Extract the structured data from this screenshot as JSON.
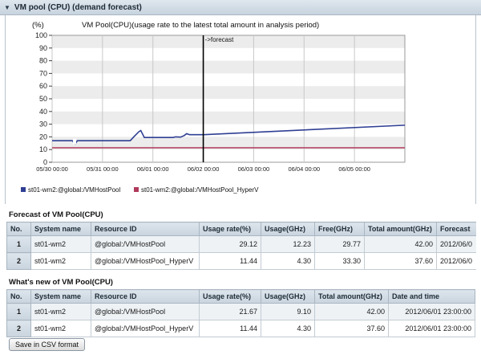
{
  "panel": {
    "title": "VM pool (CPU) (demand forecast)"
  },
  "chart_data": {
    "type": "line",
    "title": "VM Pool(CPU)(usage rate to the latest total amount in analysis period)",
    "ylabel": "(%)",
    "xlabel": "",
    "ylim": [
      0,
      100
    ],
    "yticks": [
      0,
      10,
      20,
      30,
      40,
      50,
      60,
      70,
      80,
      90,
      100
    ],
    "xticks": [
      "05/30 00:00",
      "05/31 00:00",
      "06/01 00:00",
      "06/02 00:00",
      "06/03 00:00",
      "06/04 00:00",
      "06/05 00:00"
    ],
    "xlim_days": [
      0,
      7
    ],
    "forecast_label": "->forecast",
    "forecast_at_day": 3.0,
    "grid": true,
    "legend_position": "bottom-left",
    "series": [
      {
        "name": "st01-wm2:@global:/VMHostPool",
        "color": "#2f3f93",
        "points": [
          [
            0.0,
            17
          ],
          [
            0.4,
            17
          ],
          [
            0.46,
            14.5
          ],
          [
            0.5,
            17
          ],
          [
            1.55,
            17
          ],
          [
            1.62,
            20
          ],
          [
            1.72,
            24
          ],
          [
            1.76,
            25
          ],
          [
            1.83,
            19.5
          ],
          [
            2.4,
            19.5
          ],
          [
            2.45,
            20
          ],
          [
            2.55,
            19.8
          ],
          [
            2.62,
            21
          ],
          [
            2.67,
            22.5
          ],
          [
            2.73,
            21.7
          ],
          [
            3.0,
            21.7
          ],
          [
            7.0,
            29.2
          ]
        ]
      },
      {
        "name": "st01-wm2:@global:/VMHostPool_HyperV",
        "color": "#b03a5c",
        "points": [
          [
            0.0,
            11.4
          ],
          [
            7.0,
            11.4
          ]
        ]
      }
    ]
  },
  "forecast_table": {
    "title": "Forecast of VM Pool(CPU)",
    "columns": [
      "No.",
      "System name",
      "Resource ID",
      "Usage rate(%)",
      "Usage(GHz)",
      "Free(GHz)",
      "Total amount(GHz)",
      "Forecast"
    ],
    "rows": [
      [
        "1",
        "st01-wm2",
        "@global:/VMHostPool",
        "29.12",
        "12.23",
        "29.77",
        "42.00",
        "2012/06/0"
      ],
      [
        "2",
        "st01-wm2",
        "@global:/VMHostPool_HyperV",
        "11.44",
        "4.30",
        "33.30",
        "37.60",
        "2012/06/0"
      ]
    ]
  },
  "whats_new_table": {
    "title": "What's new of VM Pool(CPU)",
    "columns": [
      "No.",
      "System name",
      "Resource ID",
      "Usage rate(%)",
      "Usage(GHz)",
      "Total amount(GHz)",
      "Date and time"
    ],
    "rows": [
      [
        "1",
        "st01-wm2",
        "@global:/VMHostPool",
        "21.67",
        "9.10",
        "42.00",
        "2012/06/01 23:00:00"
      ],
      [
        "2",
        "st01-wm2",
        "@global:/VMHostPool_HyperV",
        "11.44",
        "4.30",
        "37.60",
        "2012/06/01 23:00:00"
      ]
    ]
  },
  "actions": {
    "save_csv": "Save in CSV format"
  }
}
